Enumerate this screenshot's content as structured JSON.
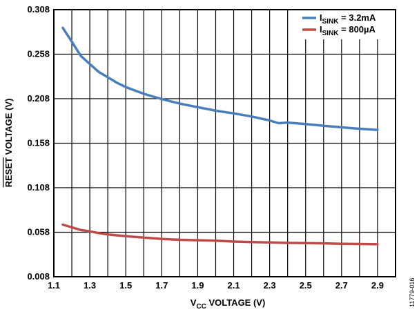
{
  "chart_data": {
    "type": "line",
    "xlabel": {
      "prefix": "V",
      "sub": "CC",
      "suffix": " VOLTAGE (V)"
    },
    "ylabel": {
      "overline": "RESET",
      "suffix": " VOLTAGE (V)"
    },
    "xlim": [
      1.1,
      3.0
    ],
    "ylim": [
      0.008,
      0.308
    ],
    "xticks": [
      1.1,
      1.3,
      1.5,
      1.7,
      1.9,
      2.1,
      2.3,
      2.5,
      2.7,
      2.9
    ],
    "xtick_labels": [
      "1.1",
      "1.3",
      "1.5",
      "1.7",
      "1.9",
      "2.1",
      "2.3",
      "2.5",
      "2.7",
      "2.9"
    ],
    "x_gridlines": [
      1.1,
      1.2,
      1.3,
      1.4,
      1.5,
      1.6,
      1.7,
      1.8,
      1.9,
      2.0,
      2.1,
      2.2,
      2.3,
      2.4,
      2.5,
      2.6,
      2.7,
      2.8,
      2.9,
      3.0
    ],
    "yticks": [
      0.008,
      0.058,
      0.108,
      0.158,
      0.208,
      0.258,
      0.308
    ],
    "ytick_labels": [
      "0.008",
      "0.058",
      "0.108",
      "0.158",
      "0.208",
      "0.258",
      "0.308"
    ],
    "grid": true,
    "legend_position": "top-right",
    "series": [
      {
        "name": {
          "prefix": "I",
          "sub": "SINK",
          "suffix": " = 3.2mA"
        },
        "color": "#4a7ebb",
        "x": [
          1.15,
          1.2,
          1.25,
          1.3,
          1.35,
          1.4,
          1.45,
          1.5,
          1.6,
          1.7,
          1.8,
          1.9,
          2.0,
          2.1,
          2.2,
          2.3,
          2.35,
          2.4,
          2.5,
          2.6,
          2.7,
          2.8,
          2.9
        ],
        "y": [
          0.2875,
          0.272,
          0.256,
          0.247,
          0.238,
          0.232,
          0.226,
          0.221,
          0.2135,
          0.2075,
          0.2025,
          0.1985,
          0.1945,
          0.1915,
          0.188,
          0.1835,
          0.1805,
          0.1812,
          0.1795,
          0.1775,
          0.1758,
          0.1742,
          0.173
        ]
      },
      {
        "name": {
          "prefix": "I",
          "sub": "SINK",
          "suffix": " = 800µA"
        },
        "color": "#be4b48",
        "x": [
          1.15,
          1.2,
          1.25,
          1.3,
          1.35,
          1.4,
          1.5,
          1.6,
          1.7,
          1.8,
          1.9,
          2.0,
          2.1,
          2.2,
          2.3,
          2.4,
          2.5,
          2.6,
          2.7,
          2.8,
          2.9
        ],
        "y": [
          0.0665,
          0.0635,
          0.0605,
          0.059,
          0.057,
          0.0555,
          0.0535,
          0.052,
          0.0505,
          0.0495,
          0.049,
          0.0485,
          0.0475,
          0.047,
          0.0465,
          0.046,
          0.0458,
          0.0455,
          0.045,
          0.0448,
          0.0445
        ]
      }
    ]
  },
  "figure_id": "11779-016"
}
